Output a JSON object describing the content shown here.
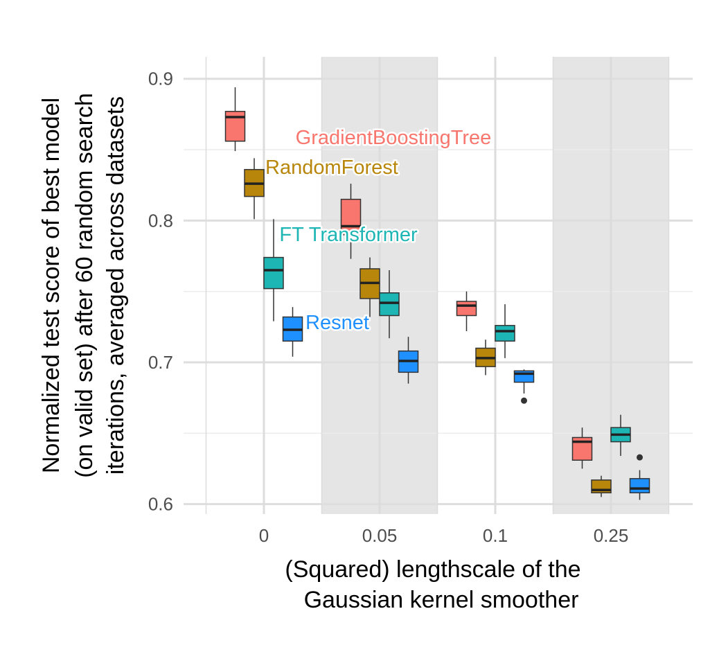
{
  "chart_data": {
    "type": "boxplot",
    "categories": [
      "0",
      "0.05",
      "0.1",
      "0.25"
    ],
    "xlabel": "(Squared) lengthscale of the Gaussian kernel smoother",
    "xlabel_lines": [
      "(Squared) lengthscale of the",
      "Gaussian kernel smoother"
    ],
    "ylabel": "Normalized test score of best model (on valid set) after 60 random search iterations, averaged across datasets",
    "ylabel_lines": [
      "Normalized test score of best model",
      "(on valid set) after 60 random search",
      "iterations, averaged across datasets"
    ],
    "ylim": [
      0.593,
      0.9155
    ],
    "yticks": [
      0.6,
      0.7,
      0.8,
      0.9
    ],
    "ytick_labels": [
      "0.6",
      "0.7",
      "0.8",
      "0.9"
    ],
    "grid": true,
    "shaded_categories": [
      "0.05",
      "0.25"
    ],
    "series": [
      {
        "name": "GradientBoostingTree",
        "color": "#F8766D",
        "boxes": [
          {
            "min": 0.849,
            "q1": 0.856,
            "median": 0.873,
            "q3": 0.877,
            "max": 0.894,
            "outliers": []
          },
          {
            "min": 0.773,
            "q1": 0.79,
            "median": 0.796,
            "q3": 0.815,
            "max": 0.826,
            "outliers": []
          },
          {
            "min": 0.722,
            "q1": 0.733,
            "median": 0.74,
            "q3": 0.743,
            "max": 0.75,
            "outliers": []
          },
          {
            "min": 0.625,
            "q1": 0.631,
            "median": 0.644,
            "q3": 0.647,
            "max": 0.654,
            "outliers": []
          }
        ]
      },
      {
        "name": "RandomForest",
        "color": "#B8860B",
        "boxes": [
          {
            "min": 0.801,
            "q1": 0.817,
            "median": 0.826,
            "q3": 0.836,
            "max": 0.844,
            "outliers": []
          },
          {
            "min": 0.732,
            "q1": 0.745,
            "median": 0.756,
            "q3": 0.766,
            "max": 0.774,
            "outliers": []
          },
          {
            "min": 0.691,
            "q1": 0.697,
            "median": 0.703,
            "q3": 0.71,
            "max": 0.716,
            "outliers": []
          },
          {
            "min": 0.605,
            "q1": 0.608,
            "median": 0.61,
            "q3": 0.617,
            "max": 0.62,
            "outliers": []
          }
        ]
      },
      {
        "name": "FT Transformer",
        "color": "#1EB5B5",
        "boxes": [
          {
            "min": 0.729,
            "q1": 0.752,
            "median": 0.765,
            "q3": 0.774,
            "max": 0.801,
            "outliers": []
          },
          {
            "min": 0.717,
            "q1": 0.733,
            "median": 0.742,
            "q3": 0.749,
            "max": 0.765,
            "outliers": []
          },
          {
            "min": 0.703,
            "q1": 0.715,
            "median": 0.722,
            "q3": 0.726,
            "max": 0.741,
            "outliers": []
          },
          {
            "min": 0.634,
            "q1": 0.644,
            "median": 0.649,
            "q3": 0.654,
            "max": 0.663,
            "outliers": []
          }
        ]
      },
      {
        "name": "Resnet",
        "color": "#1E90FF",
        "boxes": [
          {
            "min": 0.704,
            "q1": 0.715,
            "median": 0.723,
            "q3": 0.732,
            "max": 0.739,
            "outliers": []
          },
          {
            "min": 0.685,
            "q1": 0.693,
            "median": 0.701,
            "q3": 0.708,
            "max": 0.718,
            "outliers": []
          },
          {
            "min": 0.678,
            "q1": 0.686,
            "median": 0.692,
            "q3": 0.694,
            "max": 0.695,
            "outliers": [
              0.673
            ]
          },
          {
            "min": 0.603,
            "q1": 0.608,
            "median": 0.611,
            "q3": 0.618,
            "max": 0.624,
            "outliers": [
              0.633
            ]
          }
        ]
      }
    ]
  }
}
